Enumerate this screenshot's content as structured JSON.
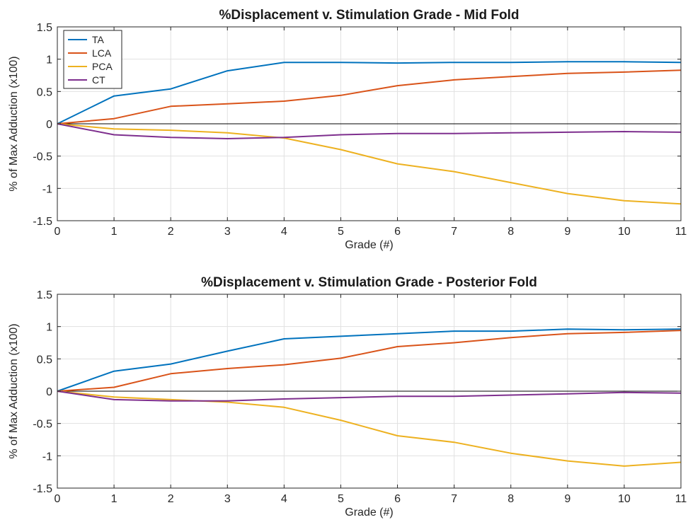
{
  "chart_data": [
    {
      "type": "line",
      "title": "%Displacement v. Stimulation Grade - Mid Fold",
      "xlabel": "Grade (#)",
      "ylabel": "% of Max Adduction (x100)",
      "xlim": [
        0,
        11
      ],
      "ylim": [
        -1.5,
        1.5
      ],
      "xticks": [
        0,
        1,
        2,
        3,
        4,
        5,
        6,
        7,
        8,
        9,
        10,
        11
      ],
      "yticks": [
        -1.5,
        -1,
        -0.5,
        0,
        0.5,
        1,
        1.5
      ],
      "xtick_labels": [
        "0",
        "1",
        "2",
        "3",
        "4",
        "5",
        "6",
        "7",
        "8",
        "9",
        "10",
        "11"
      ],
      "ytick_labels": [
        "-1.5",
        "-1",
        "-0.5",
        "0",
        "0.5",
        "1",
        "1.5"
      ],
      "grid": true,
      "zero_line": true,
      "legend": {
        "placement": "top-left",
        "visible": true
      },
      "x": [
        0,
        1,
        2,
        3,
        4,
        5,
        6,
        7,
        8,
        9,
        10,
        11
      ],
      "series": [
        {
          "name": "TA",
          "color": "#0072BD",
          "values": [
            0,
            0.43,
            0.54,
            0.82,
            0.95,
            0.95,
            0.94,
            0.95,
            0.95,
            0.96,
            0.96,
            0.95
          ]
        },
        {
          "name": "LCA",
          "color": "#D95319",
          "values": [
            0,
            0.08,
            0.27,
            0.31,
            0.35,
            0.44,
            0.59,
            0.68,
            0.73,
            0.78,
            0.8,
            0.83
          ]
        },
        {
          "name": "PCA",
          "color": "#EDB120",
          "values": [
            0,
            -0.08,
            -0.1,
            -0.14,
            -0.22,
            -0.4,
            -0.62,
            -0.74,
            -0.91,
            -1.08,
            -1.19,
            -1.24
          ]
        },
        {
          "name": "CT",
          "color": "#7E2F8E",
          "values": [
            0,
            -0.17,
            -0.21,
            -0.23,
            -0.21,
            -0.17,
            -0.15,
            -0.15,
            -0.14,
            -0.13,
            -0.12,
            -0.13
          ]
        }
      ]
    },
    {
      "type": "line",
      "title": "%Displacement v. Stimulation Grade - Posterior Fold",
      "xlabel": "Grade (#)",
      "ylabel": "% of Max Adduction (x100)",
      "xlim": [
        0,
        11
      ],
      "ylim": [
        -1.5,
        1.5
      ],
      "xticks": [
        0,
        1,
        2,
        3,
        4,
        5,
        6,
        7,
        8,
        9,
        10,
        11
      ],
      "yticks": [
        -1.5,
        -1,
        -0.5,
        0,
        0.5,
        1,
        1.5
      ],
      "xtick_labels": [
        "0",
        "1",
        "2",
        "3",
        "4",
        "5",
        "6",
        "7",
        "8",
        "9",
        "10",
        "11"
      ],
      "ytick_labels": [
        "-1.5",
        "-1",
        "-0.5",
        "0",
        "0.5",
        "1",
        "1.5"
      ],
      "grid": true,
      "zero_line": true,
      "legend": {
        "visible": false
      },
      "x": [
        0,
        1,
        2,
        3,
        4,
        5,
        6,
        7,
        8,
        9,
        10,
        11
      ],
      "series": [
        {
          "name": "TA",
          "color": "#0072BD",
          "values": [
            0,
            0.31,
            0.42,
            0.62,
            0.81,
            0.85,
            0.89,
            0.93,
            0.93,
            0.96,
            0.95,
            0.96
          ]
        },
        {
          "name": "LCA",
          "color": "#D95319",
          "values": [
            0,
            0.06,
            0.27,
            0.35,
            0.41,
            0.51,
            0.69,
            0.75,
            0.83,
            0.89,
            0.91,
            0.94
          ]
        },
        {
          "name": "PCA",
          "color": "#EDB120",
          "values": [
            0,
            -0.09,
            -0.13,
            -0.17,
            -0.25,
            -0.45,
            -0.69,
            -0.79,
            -0.96,
            -1.08,
            -1.16,
            -1.1
          ]
        },
        {
          "name": "CT",
          "color": "#7E2F8E",
          "values": [
            0,
            -0.13,
            -0.15,
            -0.15,
            -0.12,
            -0.1,
            -0.08,
            -0.08,
            -0.06,
            -0.04,
            -0.02,
            -0.03
          ]
        }
      ]
    }
  ]
}
